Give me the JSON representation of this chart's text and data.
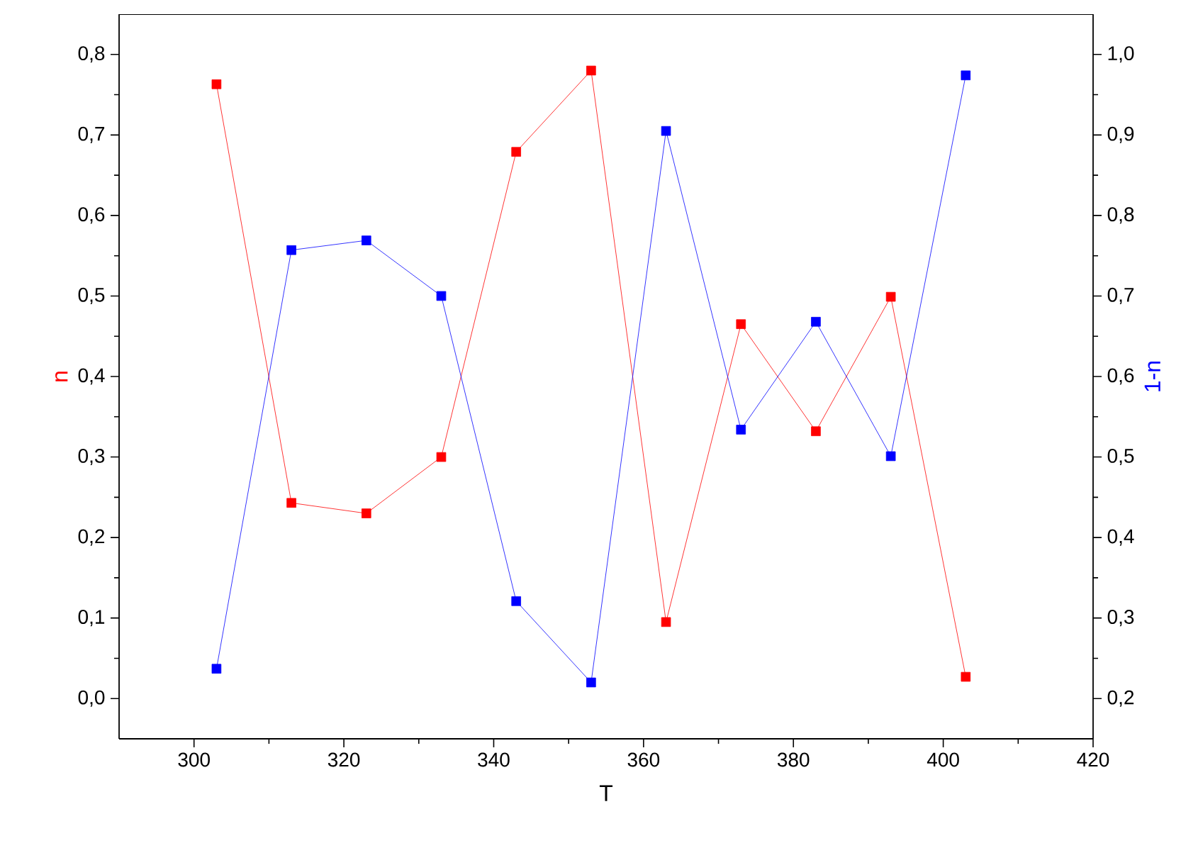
{
  "chart_data": {
    "type": "line",
    "xlabel": "T",
    "ylabel": "n",
    "y2label": "1-n",
    "marker": "square",
    "line_style": "solid",
    "grid": false,
    "x": [
      303,
      313,
      323,
      333,
      343,
      353,
      363,
      373,
      383,
      393,
      403
    ],
    "xlim": [
      290,
      420
    ],
    "xticks": [
      300,
      320,
      340,
      360,
      380,
      400,
      420
    ],
    "ylim": [
      -0.05,
      0.85
    ],
    "yticks": [
      {
        "value": 0,
        "label": "0,0"
      },
      {
        "value": 0.1,
        "label": "0,1"
      },
      {
        "value": 0.2,
        "label": "0,2"
      },
      {
        "value": 0.3,
        "label": "0,3"
      },
      {
        "value": 0.4,
        "label": "0,4"
      },
      {
        "value": 0.5,
        "label": "0,5"
      },
      {
        "value": 0.6,
        "label": "0,6"
      },
      {
        "value": 0.7,
        "label": "0,7"
      },
      {
        "value": 0.8,
        "label": "0,8"
      }
    ],
    "y2lim": [
      0.15,
      1.05
    ],
    "y2ticks": [
      {
        "value": 0.2,
        "label": "0,2"
      },
      {
        "value": 0.3,
        "label": "0,3"
      },
      {
        "value": 0.4,
        "label": "0,4"
      },
      {
        "value": 0.5,
        "label": "0,5"
      },
      {
        "value": 0.6,
        "label": "0,6"
      },
      {
        "value": 0.7,
        "label": "0,7"
      },
      {
        "value": 0.8,
        "label": "0,8"
      },
      {
        "value": 0.9,
        "label": "0,9"
      },
      {
        "value": 1.0,
        "label": "1,0"
      }
    ],
    "series": [
      {
        "color": "#ff0000",
        "values": [
          0.763,
          0.243,
          0.23,
          0.3,
          0.679,
          0.78,
          0.095,
          0.465,
          0.332,
          0.499,
          0.027
        ]
      },
      {
        "color": "#0000ff",
        "axis": "y2",
        "values": [
          0.237,
          0.757,
          0.769,
          0.7,
          0.321,
          0.22,
          0.905,
          0.534,
          0.668,
          0.501,
          0.974
        ]
      }
    ]
  }
}
